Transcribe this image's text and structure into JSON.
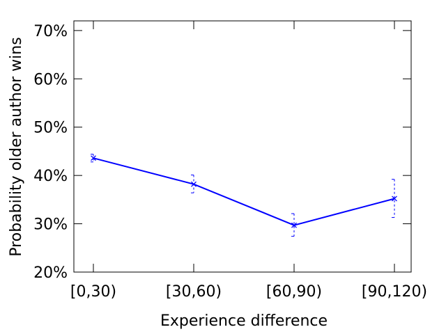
{
  "chart_data": {
    "type": "line",
    "title": "",
    "xlabel": "Experience difference",
    "ylabel": "Probability older author wins",
    "categories": [
      "[0,30)",
      "[30,60)",
      "[60,90)",
      "[90,120)"
    ],
    "series": [
      {
        "values": [
          43.6,
          38.2,
          29.7,
          35.2
        ],
        "err_low": [
          42.8,
          36.4,
          27.4,
          31.3
        ],
        "err_high": [
          44.4,
          40.1,
          32.1,
          39.2
        ],
        "color": "#0000ff"
      }
    ],
    "ylim": [
      20,
      72
    ],
    "yticks": [
      20,
      30,
      40,
      50,
      60,
      70
    ],
    "ytick_labels": [
      "20%",
      "30%",
      "40%",
      "50%",
      "60%",
      "70%"
    ],
    "grid": false,
    "legend": "none"
  }
}
